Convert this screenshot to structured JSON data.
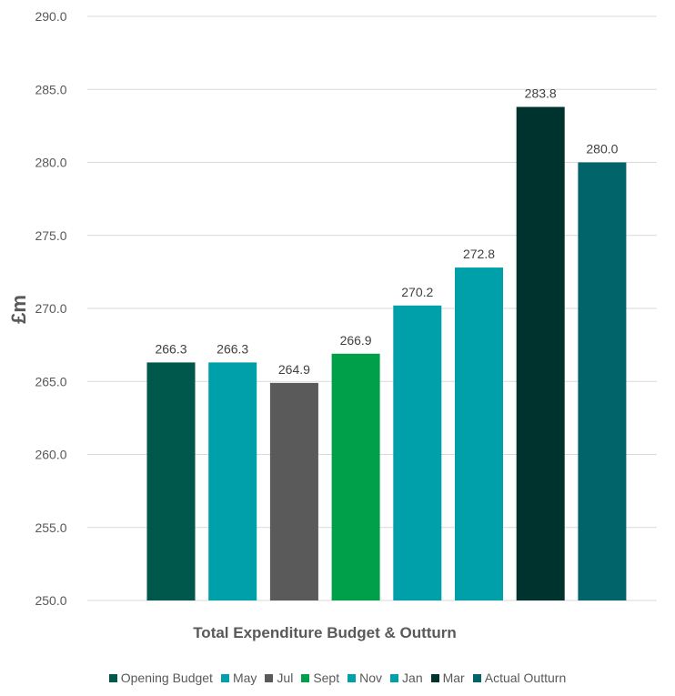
{
  "chart_data": {
    "type": "bar",
    "title": "Total Expenditure Budget & Outturn",
    "xlabel": "Total Expenditure Budget & Outturn",
    "ylabel": "£m",
    "ylim": [
      250.0,
      290.0
    ],
    "yticks": [
      "250.0",
      "255.0",
      "260.0",
      "265.0",
      "270.0",
      "275.0",
      "280.0",
      "285.0",
      "290.0"
    ],
    "grid": true,
    "legend_position": "bottom",
    "series": [
      {
        "name": "Opening Budget",
        "value": 266.3,
        "label": "266.3",
        "color": "#00574B"
      },
      {
        "name": "May",
        "value": 266.3,
        "label": "266.3",
        "color": "#00A0AA"
      },
      {
        "name": "Jul",
        "value": 264.9,
        "label": "264.9",
        "color": "#5A5A5A"
      },
      {
        "name": "Sept",
        "value": 266.9,
        "label": "266.9",
        "color": "#00A04B"
      },
      {
        "name": "Nov",
        "value": 270.2,
        "label": "270.2",
        "color": "#00A0AA"
      },
      {
        "name": "Jan",
        "value": 272.8,
        "label": "272.8",
        "color": "#00A0AA"
      },
      {
        "name": "Mar",
        "value": 283.8,
        "label": "283.8",
        "color": "#00332D"
      },
      {
        "name": "Actual Outturn",
        "value": 280.0,
        "label": "280.0",
        "color": "#00646A"
      }
    ]
  }
}
